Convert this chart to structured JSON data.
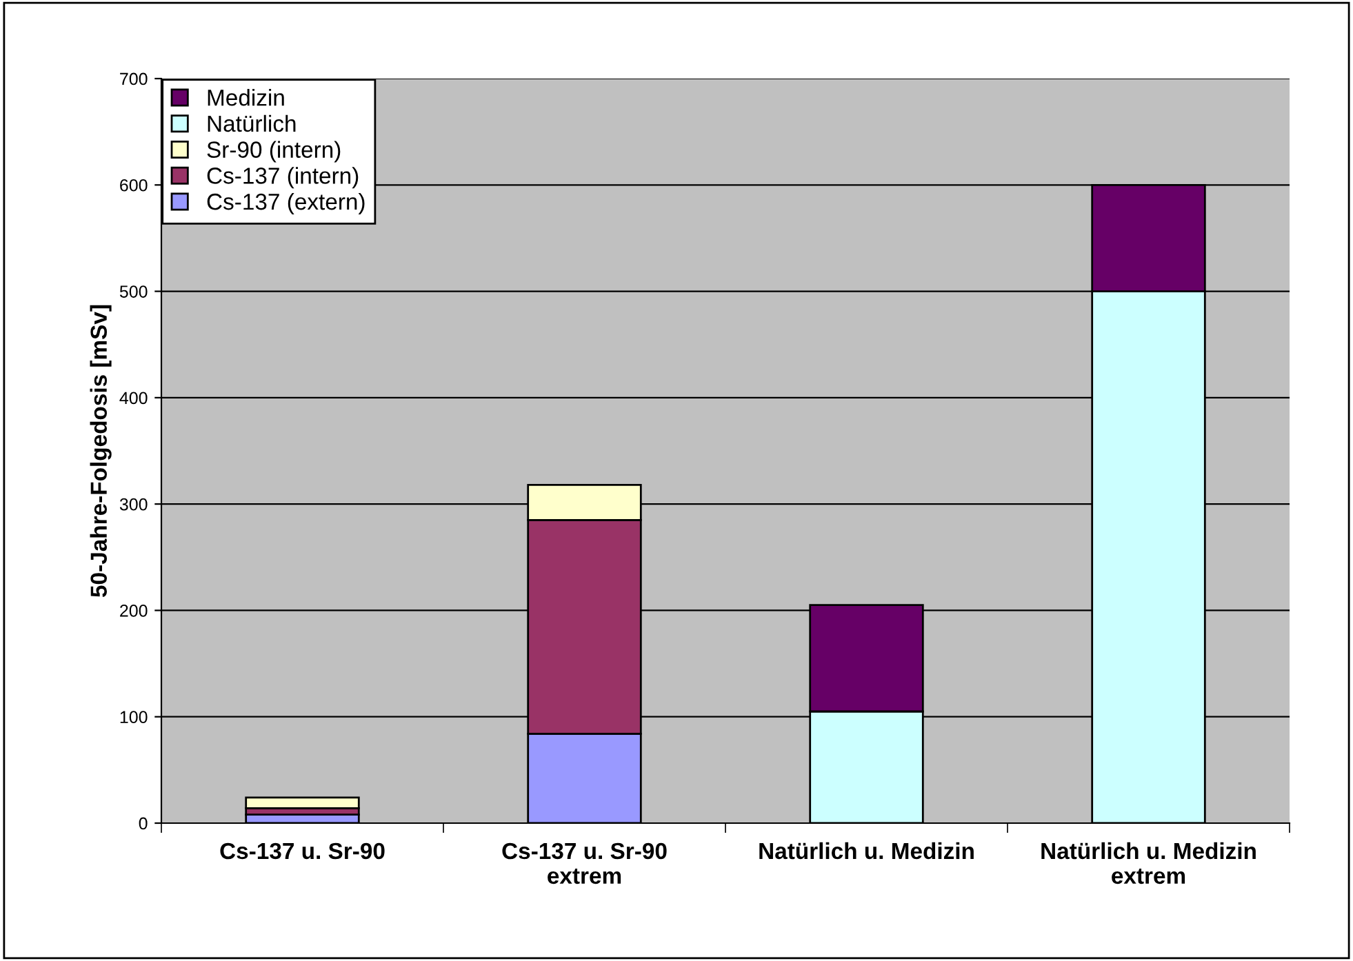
{
  "chart_data": {
    "type": "bar",
    "stacked": true,
    "ylabel": "50-Jahre-Folgedosis [mSv]",
    "categories": [
      "Cs-137 u. Sr-90",
      "Cs-137 u. Sr-90\nextrem",
      "Natürlich u. Medizin",
      "Natürlich u. Medizin\nextrem"
    ],
    "series": [
      {
        "name": "Cs-137 (extern)",
        "color": "#9999ff",
        "values": [
          8,
          84,
          null,
          null
        ]
      },
      {
        "name": "Cs-137 (intern)",
        "color": "#993366",
        "values": [
          6,
          201,
          null,
          null
        ]
      },
      {
        "name": "Sr-90 (intern)",
        "color": "#ffffcc",
        "values": [
          10,
          33,
          null,
          null
        ]
      },
      {
        "name": "Natürlich",
        "color": "#ccffff",
        "values": [
          null,
          null,
          105,
          500
        ]
      },
      {
        "name": "Medizin",
        "color": "#660066",
        "values": [
          null,
          null,
          100,
          100
        ]
      }
    ],
    "ylim": [
      0,
      700
    ],
    "yticks": [
      0,
      100,
      200,
      300,
      400,
      500,
      600,
      700
    ],
    "grid": "y",
    "legend": "top left"
  }
}
